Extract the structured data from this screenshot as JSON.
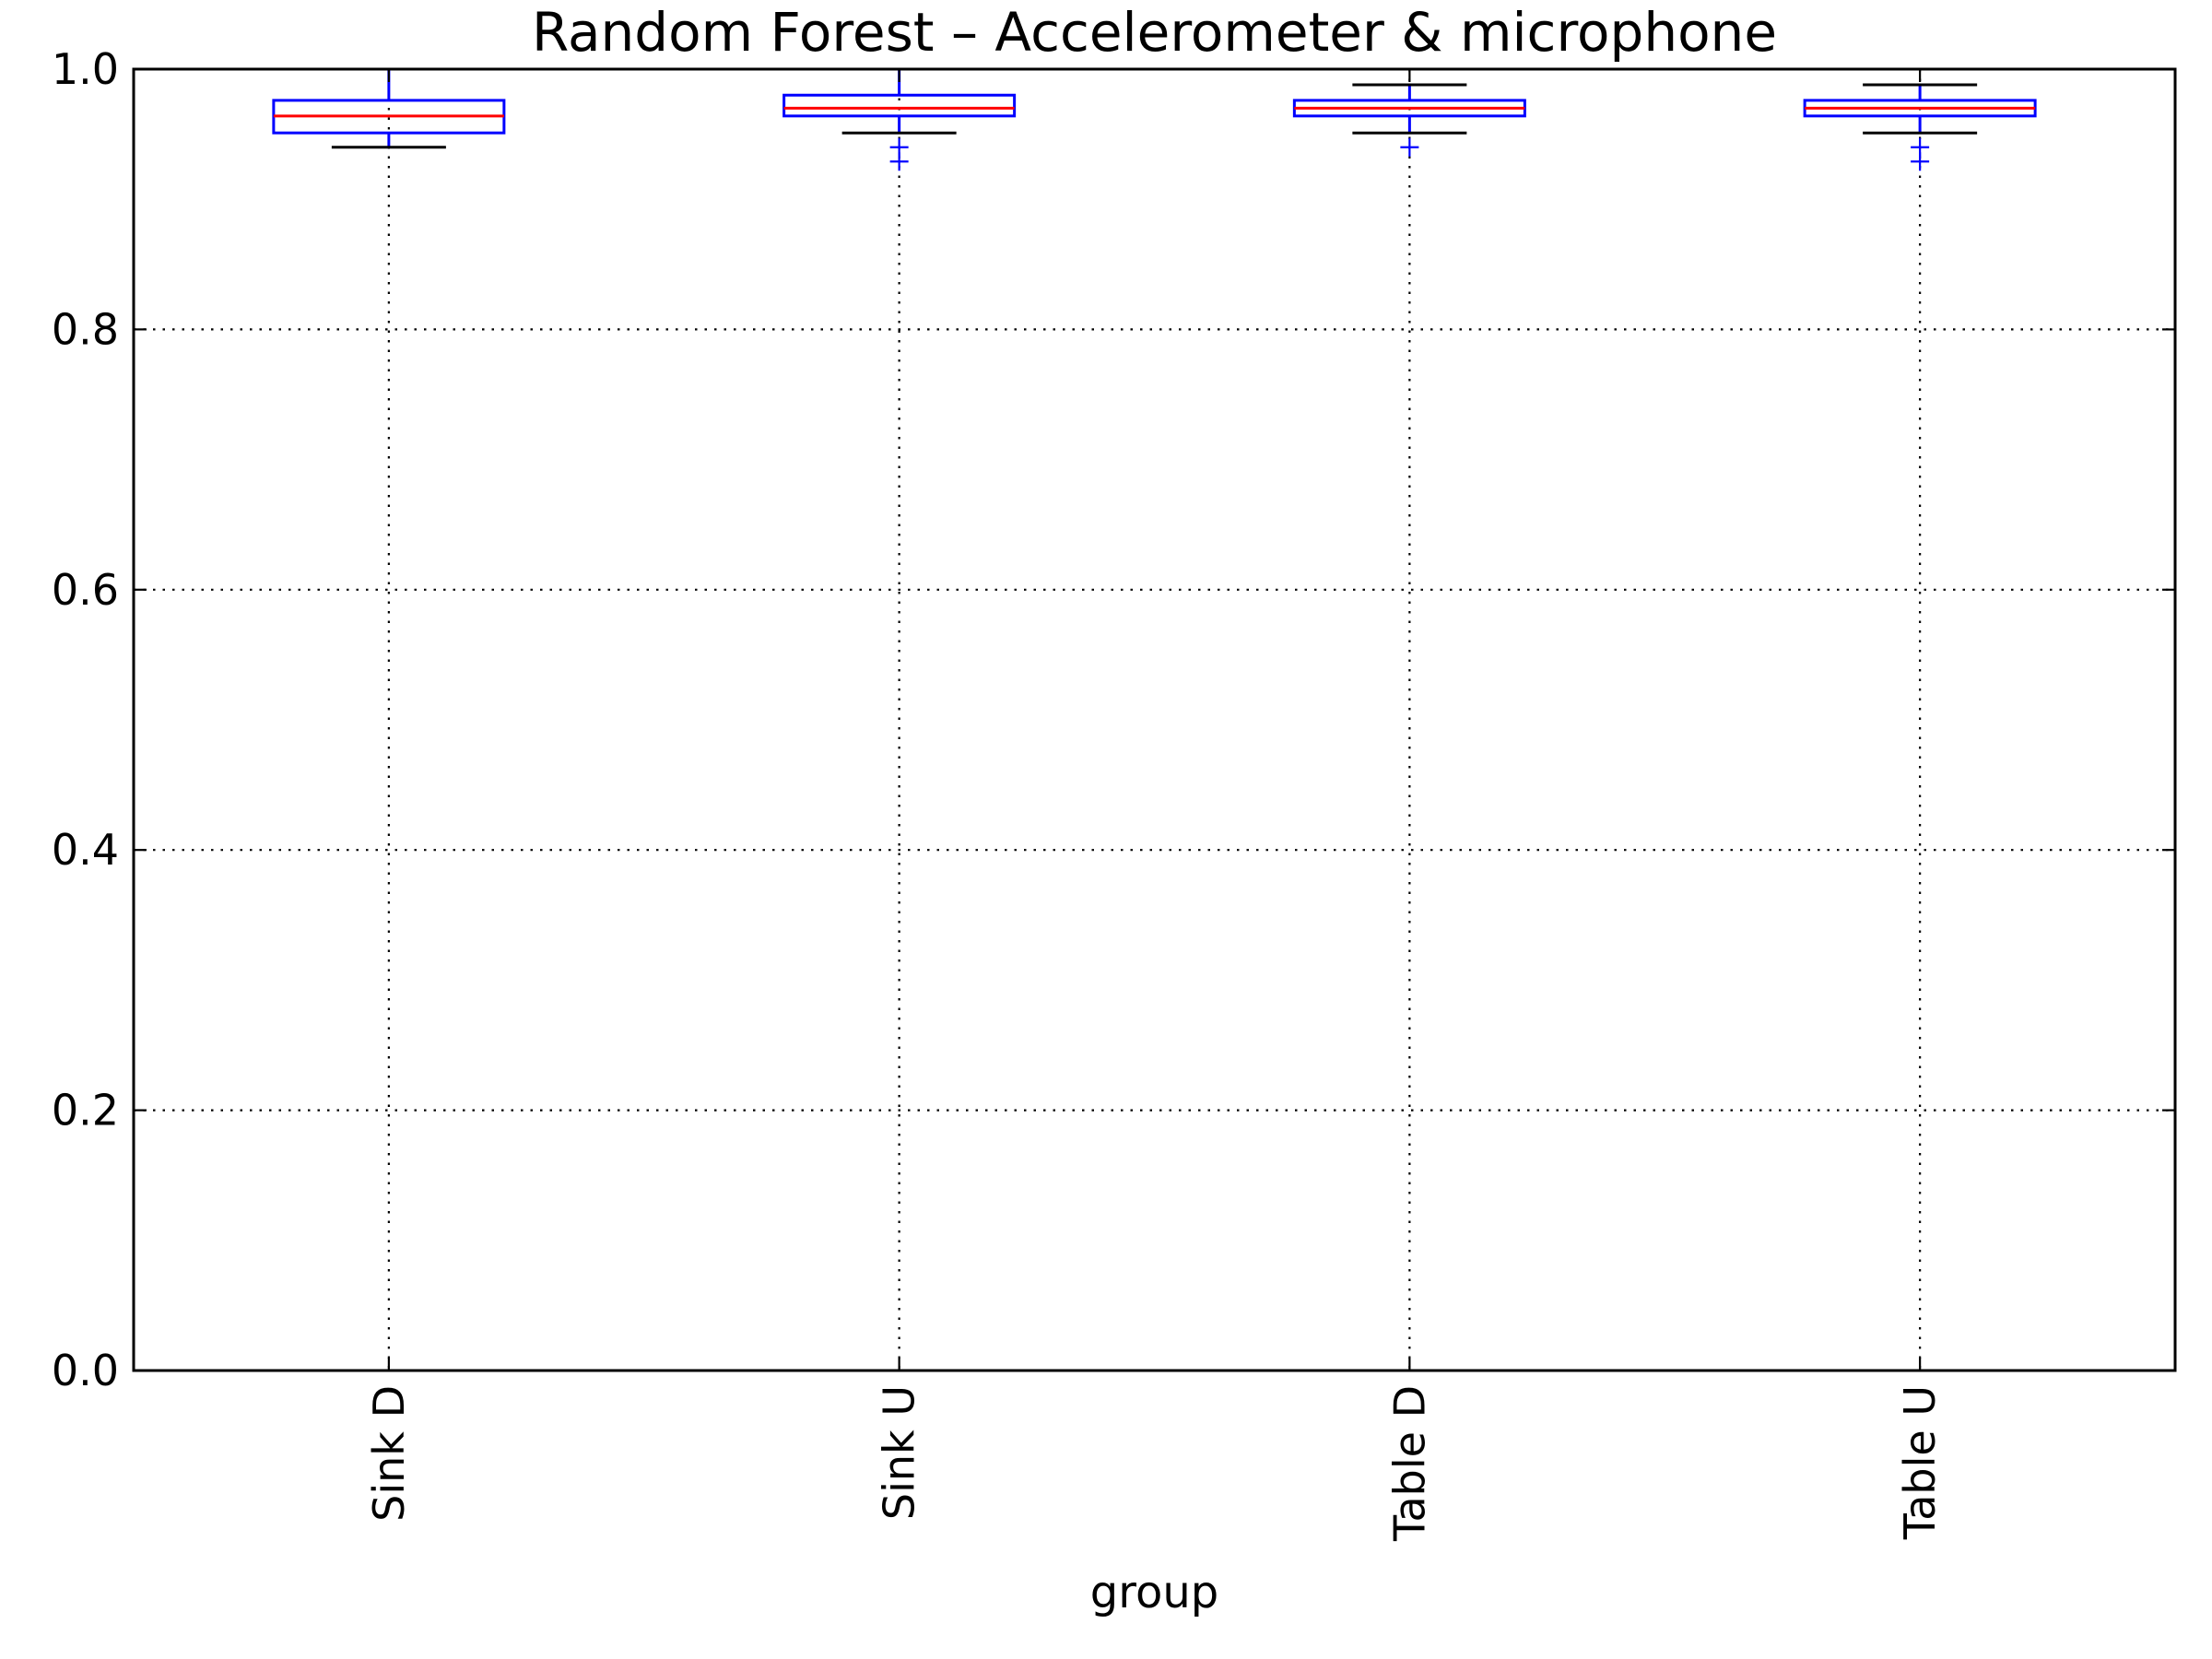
{
  "chart_data": {
    "type": "box",
    "title": "Random Forest – Accelerometer & microphone",
    "xlabel": "group",
    "ylabel": "",
    "ylim": [
      0.0,
      1.0
    ],
    "yticks": [
      "0.0",
      "0.2",
      "0.4",
      "0.6",
      "0.8",
      "1.0"
    ],
    "grid": true,
    "colors": {
      "box": "#0000ff",
      "median": "#ff0000",
      "cap": "#000000",
      "flier": "#0000ff"
    },
    "categories": [
      "Sink D",
      "Sink U",
      "Table D",
      "Table U"
    ],
    "boxes": [
      {
        "label": "Sink D",
        "whislo": 0.94,
        "q1": 0.951,
        "med": 0.964,
        "q3": 0.976,
        "whishi": 1.0,
        "fliers": []
      },
      {
        "label": "Sink U",
        "whislo": 0.951,
        "q1": 0.964,
        "med": 0.97,
        "q3": 0.98,
        "whishi": 1.0,
        "fliers": [
          0.94,
          0.929
        ]
      },
      {
        "label": "Table D",
        "whislo": 0.951,
        "q1": 0.964,
        "med": 0.97,
        "q3": 0.976,
        "whishi": 0.988,
        "fliers": [
          0.94
        ]
      },
      {
        "label": "Table U",
        "whislo": 0.951,
        "q1": 0.964,
        "med": 0.97,
        "q3": 0.976,
        "whishi": 0.988,
        "fliers": [
          0.94,
          0.929
        ]
      }
    ]
  }
}
